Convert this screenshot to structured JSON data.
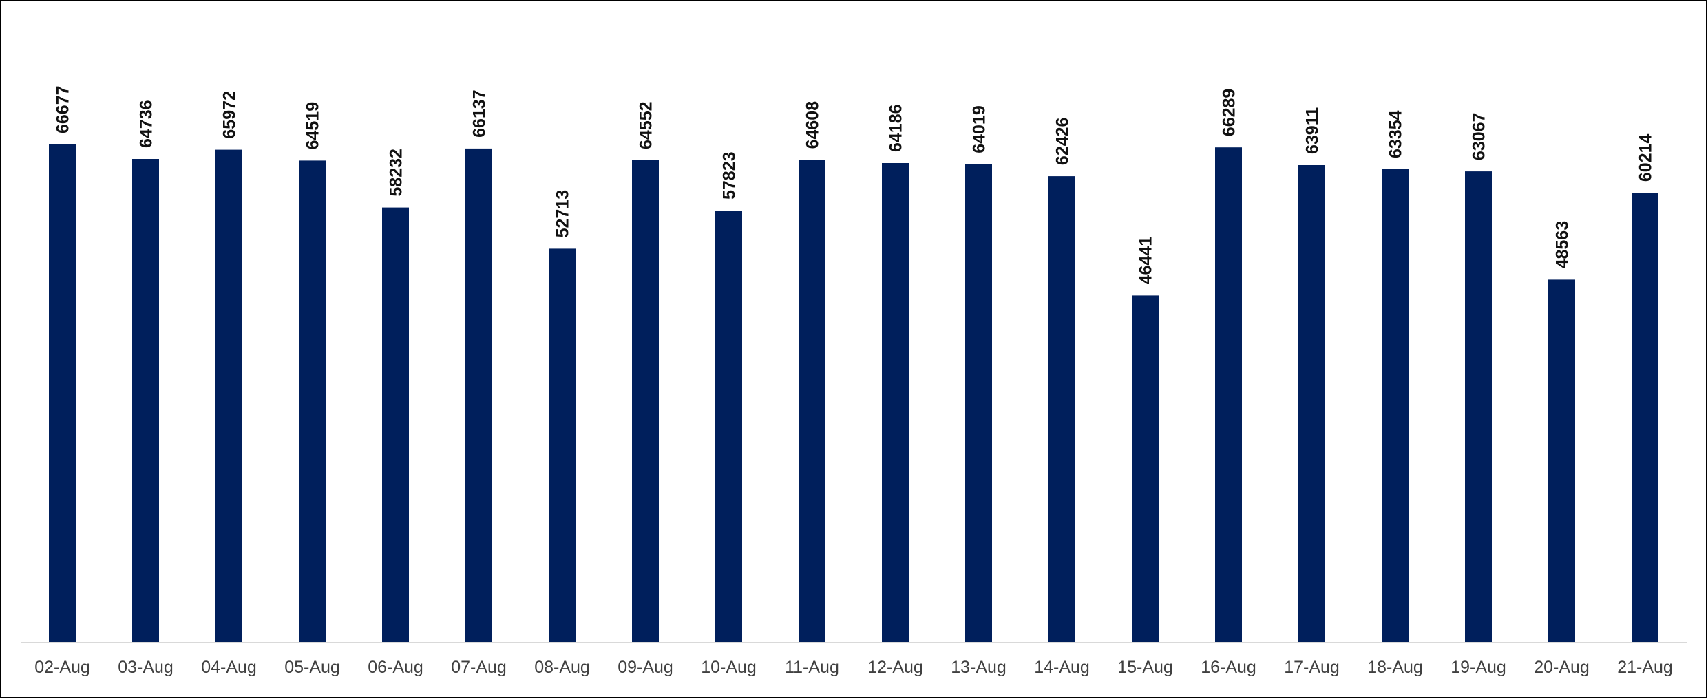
{
  "chart_data": {
    "type": "bar",
    "title": "",
    "xlabel": "",
    "ylabel": "",
    "ylim": [
      0,
      70000
    ],
    "grid": false,
    "legend": "none",
    "bar_color": "#001F5C",
    "categories": [
      "02-Aug",
      "03-Aug",
      "04-Aug",
      "05-Aug",
      "06-Aug",
      "07-Aug",
      "08-Aug",
      "09-Aug",
      "10-Aug",
      "11-Aug",
      "12-Aug",
      "13-Aug",
      "14-Aug",
      "15-Aug",
      "16-Aug",
      "17-Aug",
      "18-Aug",
      "19-Aug",
      "20-Aug",
      "21-Aug"
    ],
    "values": [
      66677,
      64736,
      65972,
      64519,
      58232,
      66137,
      52713,
      64552,
      57823,
      64608,
      64186,
      64019,
      62426,
      46441,
      66289,
      63911,
      63354,
      63067,
      48563,
      60214
    ]
  }
}
